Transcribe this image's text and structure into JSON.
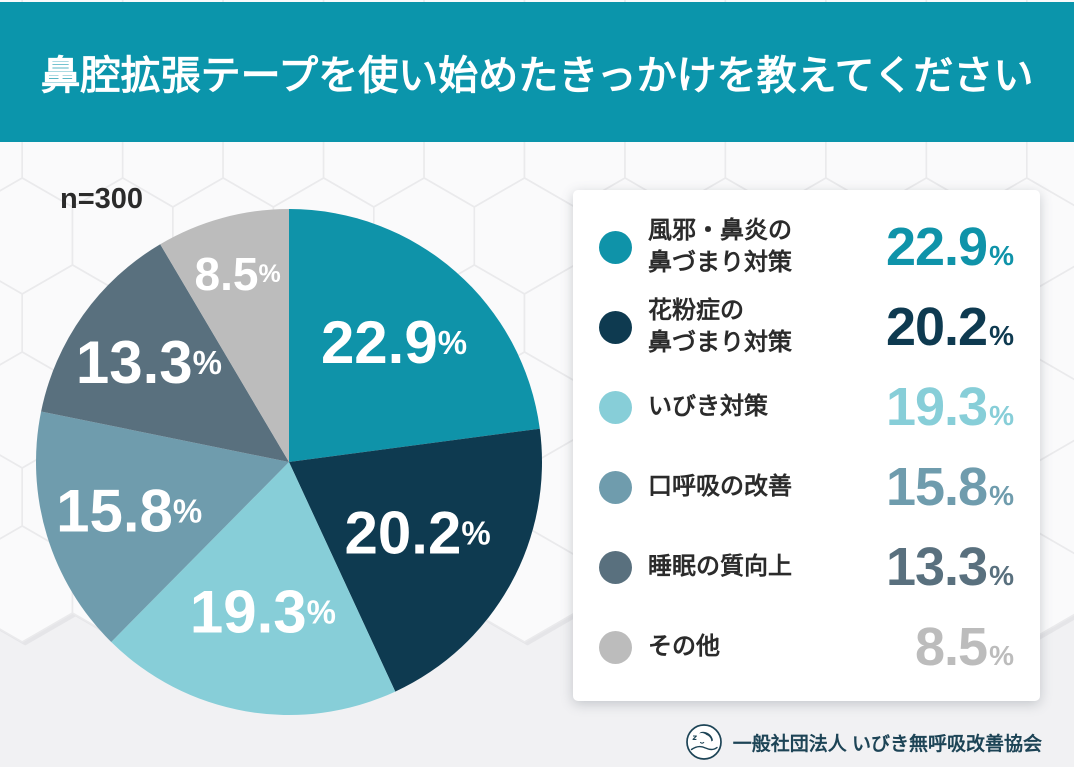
{
  "header": {
    "title": "鼻腔拡張テープを使い始めたきっかけを教えてください",
    "bg_color": "#0b95ab",
    "text_color": "#ffffff"
  },
  "chart": {
    "sample_label": "n=300"
  },
  "chart_data": {
    "type": "pie",
    "title": "鼻腔拡張テープを使い始めたきっかけを教えてください",
    "sample_size": 300,
    "unit": "%",
    "start_angle_deg": 0,
    "direction": "clockwise",
    "legend_position": "right",
    "grid": false,
    "categories": [
      "風邪・鼻炎の鼻づまり対策",
      "花粉症の鼻づまり対策",
      "いびき対策",
      "口呼吸の改善",
      "睡眠の質向上",
      "その他"
    ],
    "legend_lines": [
      [
        "風邪・鼻炎の",
        "鼻づまり対策"
      ],
      [
        "花粉症の",
        "鼻づまり対策"
      ],
      [
        "いびき対策"
      ],
      [
        "口呼吸の改善"
      ],
      [
        "睡眠の質向上"
      ],
      [
        "その他"
      ]
    ],
    "values": [
      22.9,
      20.2,
      19.3,
      15.8,
      13.3,
      8.5
    ],
    "value_labels": [
      "22.9%",
      "20.2%",
      "19.3%",
      "15.8%",
      "13.3%",
      "8.5%"
    ],
    "colors": [
      "#0f93a9",
      "#0e3a50",
      "#87ced8",
      "#6f9cad",
      "#59707e",
      "#bcbcbc"
    ],
    "slice_label_color": "#ffffff"
  },
  "footer": {
    "org_name": "一般社団法人 いびき無呼吸改善協会",
    "logo_icon": "snoring-sleeper-icon",
    "text_color": "#1d4456"
  },
  "page_bg_color": "#f1f1f3"
}
